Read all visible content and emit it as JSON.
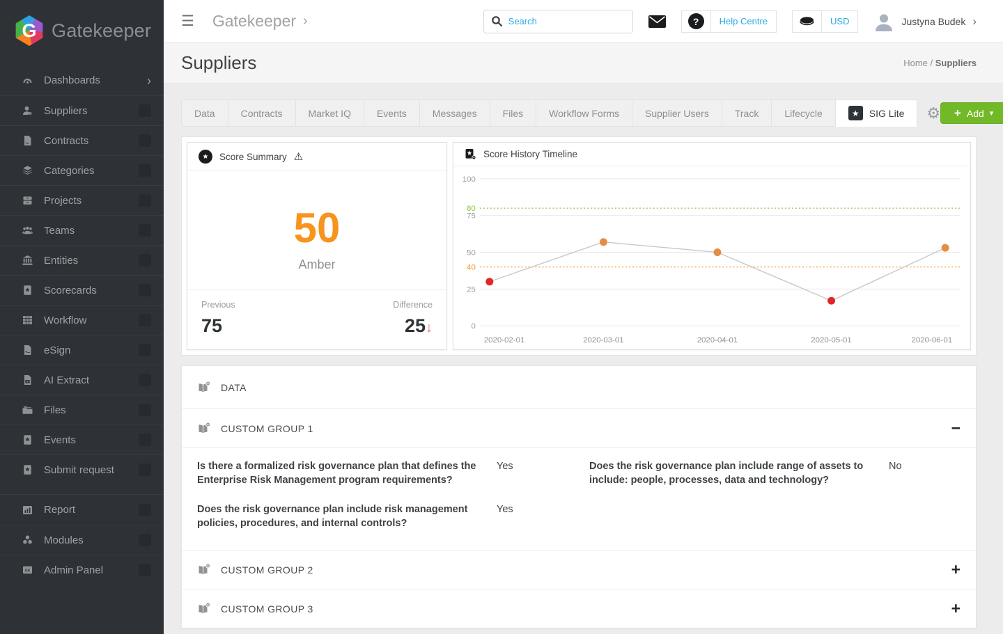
{
  "icons": {
    "menu": "☰",
    "chevron_right": "›",
    "crumb_caret": "›",
    "user_caret": "›",
    "help_glyph": "?",
    "gear": "⚙",
    "star": "★",
    "warning": "⚠",
    "add_plus": "+",
    "add_caret": "▾",
    "decrease_arrow": "↓",
    "ai": "AI",
    "gk": "GK"
  },
  "sidebar": {
    "logo_letter": "G",
    "logo_text": "Gatekeeper",
    "items": [
      {
        "label": "Dashboards",
        "icon": "gauge-icon"
      },
      {
        "label": "Suppliers",
        "icon": "supplier-person-icon"
      },
      {
        "label": "Contracts",
        "icon": "contract-document-icon"
      },
      {
        "label": "Categories",
        "icon": "layers-icon"
      },
      {
        "label": "Projects",
        "icon": "archive-box-icon"
      },
      {
        "label": "Teams",
        "icon": "people-icon"
      },
      {
        "label": "Entities",
        "icon": "bank-icon"
      },
      {
        "label": "Scorecards",
        "icon": "star-card-icon"
      },
      {
        "label": "Workflow",
        "icon": "table-grid-icon"
      },
      {
        "label": "eSign",
        "icon": "signature-document-icon"
      },
      {
        "label": "AI Extract",
        "icon": "ai-document-icon"
      },
      {
        "label": "Files",
        "icon": "folders-icon"
      },
      {
        "label": "Events",
        "icon": "star-card-icon"
      },
      {
        "label": "Submit request",
        "icon": "star-card-icon"
      }
    ],
    "bottom_items": [
      {
        "label": "Report",
        "icon": "bar-chart-icon"
      },
      {
        "label": "Modules",
        "icon": "cubes-icon"
      },
      {
        "label": "Admin Panel",
        "icon": "gk-badge-icon"
      }
    ]
  },
  "topbar": {
    "breadcrumb": "Gatekeeper",
    "search_placeholder": "Search",
    "help_label": "Help Centre",
    "currency": "USD",
    "user_name": "Justyna Budek"
  },
  "page": {
    "title": "Suppliers",
    "breadcrumb_home": "Home",
    "breadcrumb_separator": " / ",
    "breadcrumb_current": "Suppliers"
  },
  "tabs": [
    {
      "label": "Data"
    },
    {
      "label": "Contracts"
    },
    {
      "label": "Market IQ"
    },
    {
      "label": "Events"
    },
    {
      "label": "Messages"
    },
    {
      "label": "Files"
    },
    {
      "label": "Workflow Forms"
    },
    {
      "label": "Supplier Users"
    },
    {
      "label": "Track"
    },
    {
      "label": "Lifecycle"
    },
    {
      "label": "SIG Lite",
      "active": true
    }
  ],
  "toolbar": {
    "add_label": "Add"
  },
  "score_summary": {
    "title": "Score Summary",
    "score": "50",
    "score_label": "Amber",
    "previous_label": "Previous",
    "previous_value": "75",
    "difference_label": "Difference",
    "difference_value": "25"
  },
  "chart_data": {
    "type": "line",
    "title": "Score History Timeline",
    "x": [
      "2020-02-01",
      "2020-03-01",
      "2020-04-01",
      "2020-05-01",
      "2020-06-01"
    ],
    "values": [
      30,
      57,
      50,
      17,
      53
    ],
    "point_colors": [
      "#e1252b",
      "#e68d44",
      "#e68d44",
      "#e1252b",
      "#e68d44"
    ],
    "line_color": "#c8c8c8",
    "ylim": [
      0,
      100
    ],
    "yticks": [
      0,
      25,
      50,
      75,
      100
    ],
    "thresholds": [
      {
        "value": 80,
        "color": "#8cc63e"
      },
      {
        "value": 40,
        "color": "#f7941e"
      }
    ],
    "grid": true,
    "legend": "none",
    "xlabel": "",
    "ylabel": ""
  },
  "sections": {
    "data_header": "DATA",
    "groups": [
      {
        "title": "CUSTOM GROUP 1",
        "expanded": true,
        "toggle": "−",
        "qa": [
          {
            "q": "Is there a formalized risk governance plan that defines the Enterprise Risk Management program requirements?",
            "a": "Yes"
          },
          {
            "q": "Does the risk governance plan include range of assets to include: people, processes, data and technology?",
            "a": "No"
          },
          {
            "q": "Does the risk governance plan include risk management policies, procedures, and internal controls?",
            "a": "Yes"
          }
        ]
      },
      {
        "title": "CUSTOM GROUP 2",
        "expanded": false,
        "toggle": "+"
      },
      {
        "title": "CUSTOM GROUP 3",
        "expanded": false,
        "toggle": "+"
      }
    ]
  }
}
